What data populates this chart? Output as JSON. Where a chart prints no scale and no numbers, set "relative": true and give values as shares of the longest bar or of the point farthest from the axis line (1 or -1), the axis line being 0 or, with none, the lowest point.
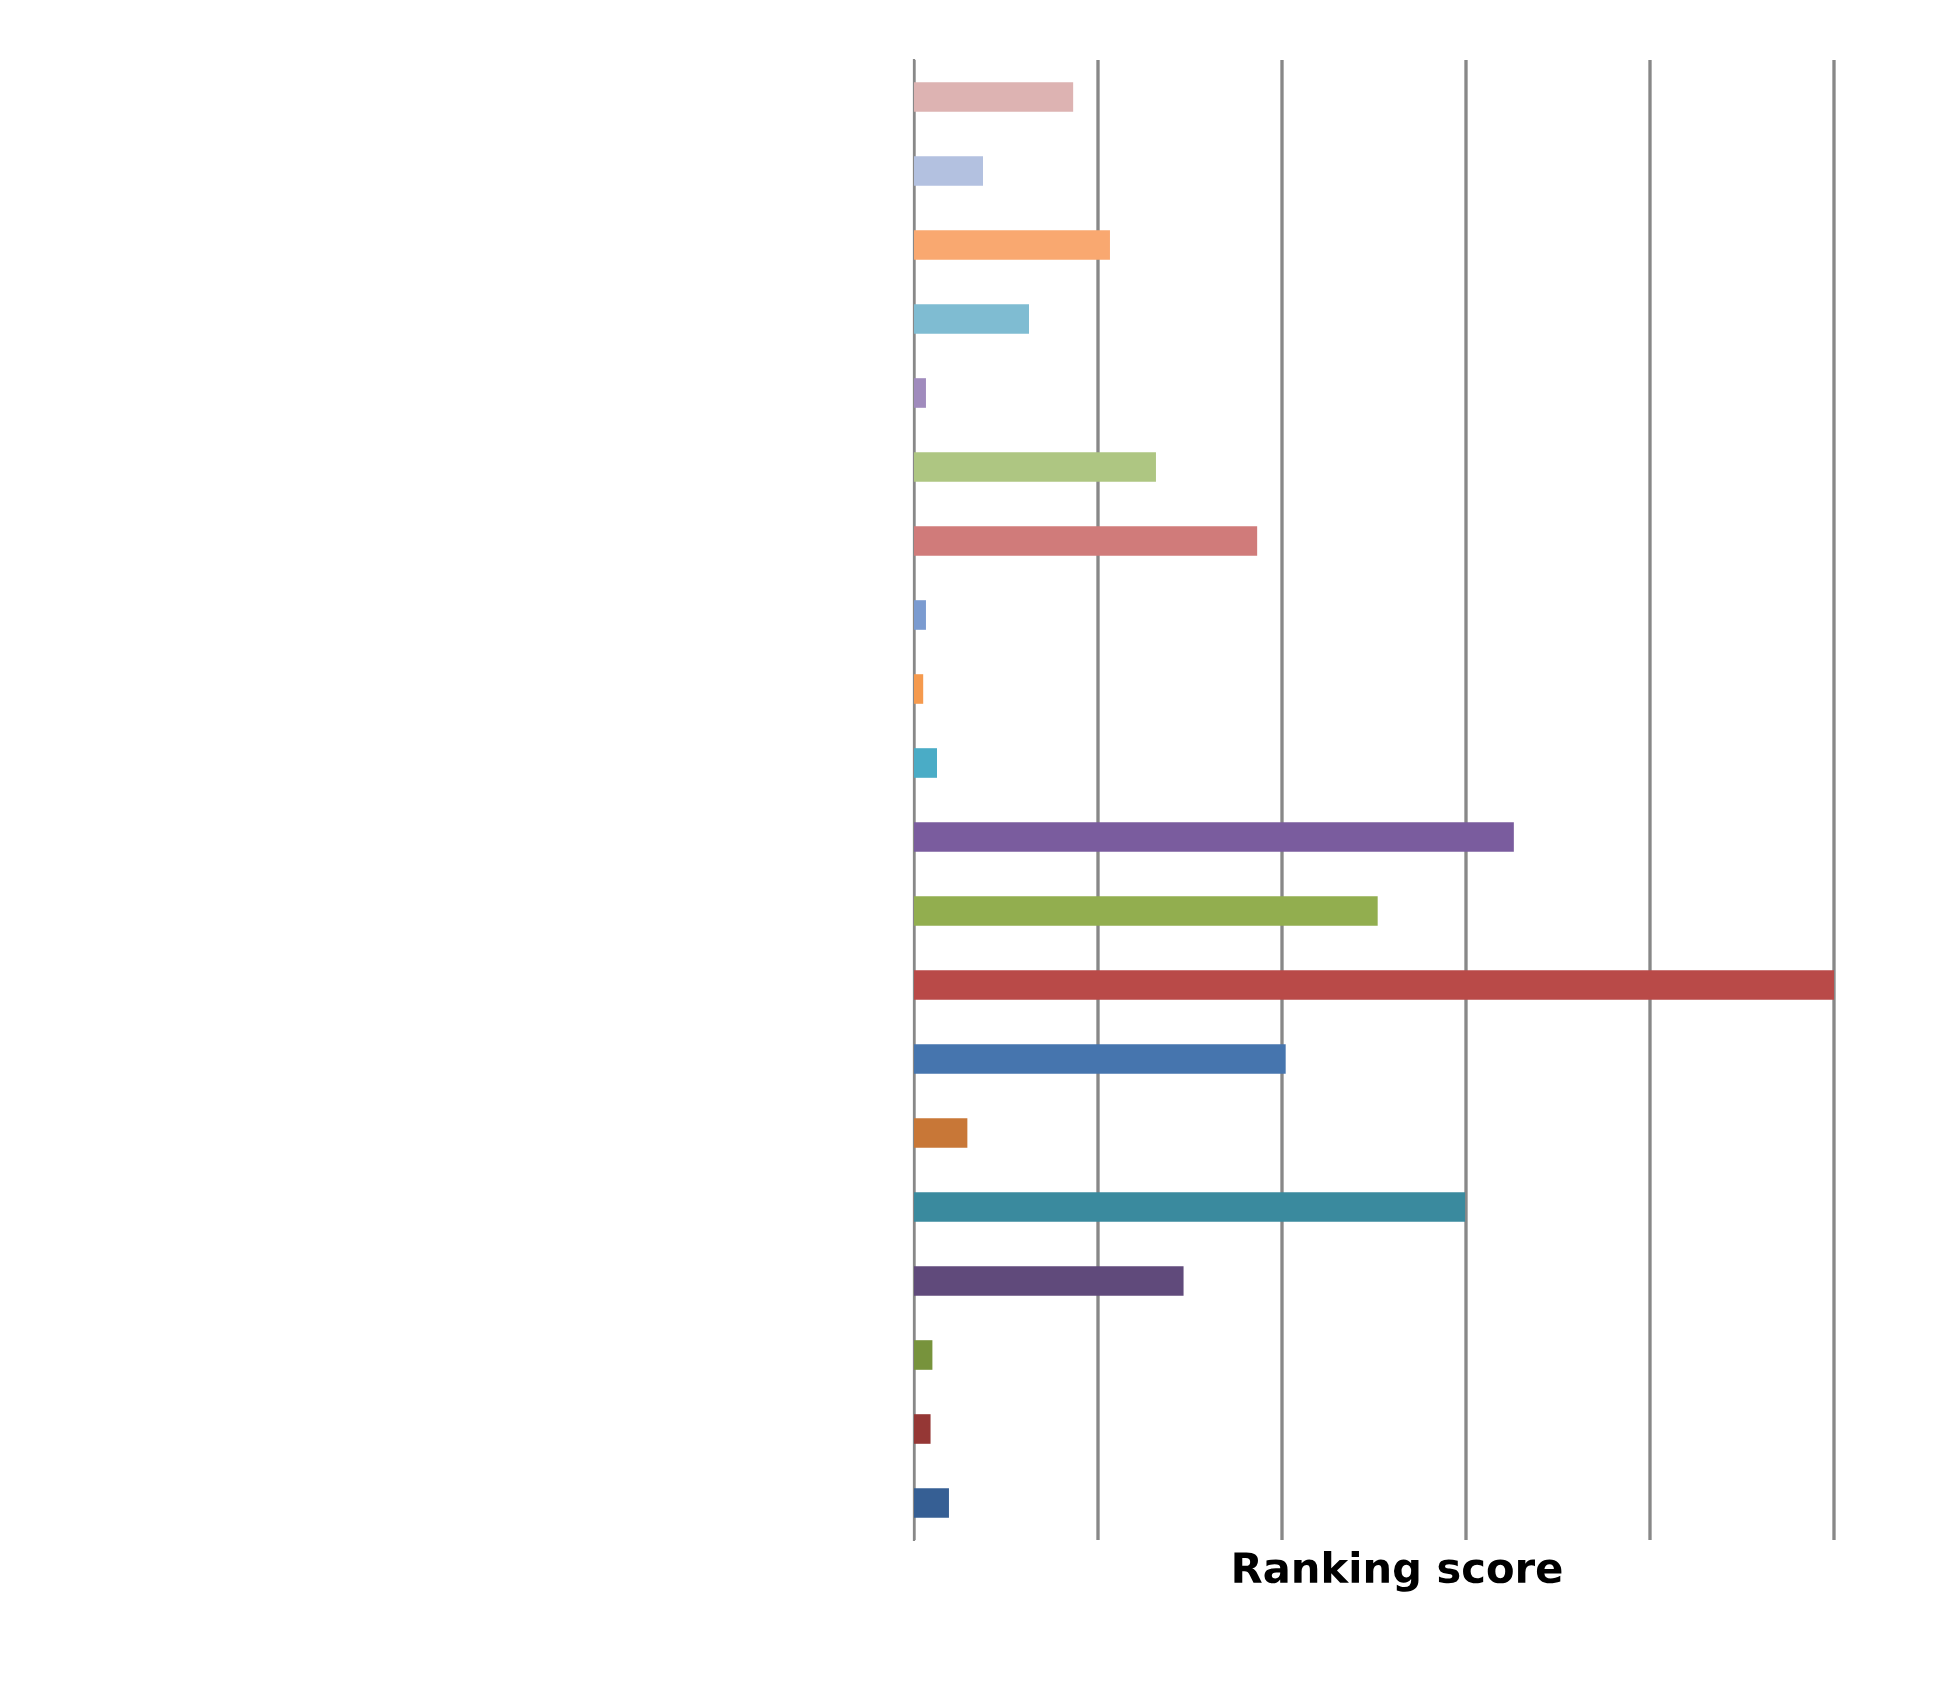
{
  "chart_data": {
    "type": "bar",
    "orientation": "horizontal",
    "relative": true,
    "xlabel": "Ranking score",
    "grid": "x",
    "legend": false,
    "categories": [
      null,
      null,
      null,
      null,
      null,
      null,
      null,
      null,
      null,
      null,
      null,
      null,
      null,
      null,
      null,
      null,
      null,
      null,
      null,
      null
    ],
    "values": [
      0.173,
      0.075,
      0.213,
      0.125,
      0.013,
      0.263,
      0.373,
      0.013,
      0.01,
      0.025,
      0.652,
      0.504,
      1,
      0.404,
      0.058,
      0.599,
      0.293,
      0.02,
      0.018,
      0.038
    ],
    "colors": [
      "#ddb3b2",
      "#b3c1e0",
      "#f9a870",
      "#7fbcd2",
      "#a08bbd",
      "#aec682",
      "#d07b7a",
      "#7b9bd0",
      "#f59a4e",
      "#4aacc6",
      "#7a5c9e",
      "#92ae4f",
      "#b94a48",
      "#4675ae",
      "#c87737",
      "#3a8a9e",
      "#604a7b",
      "#77933c",
      "#953735",
      "#365f94"
    ]
  }
}
